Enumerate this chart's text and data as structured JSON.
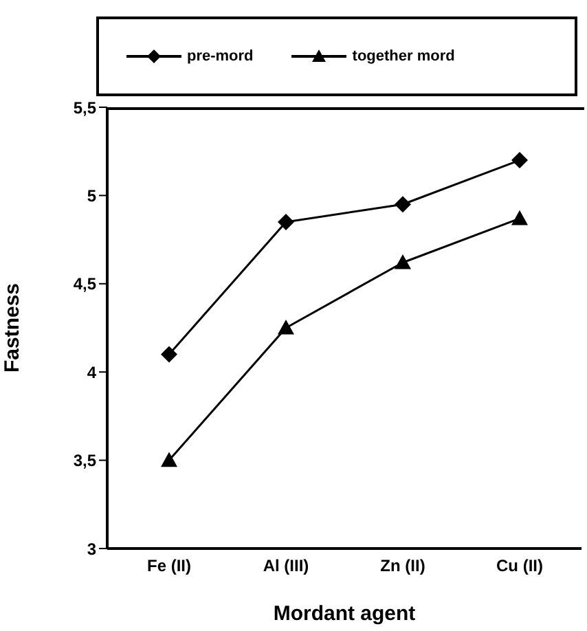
{
  "chart_data": {
    "type": "line",
    "xlabel": "Mordant agent",
    "ylabel": "Fastness",
    "categories": [
      "Fe (II)",
      "Al (III)",
      "Zn (II)",
      "Cu (II)"
    ],
    "series": [
      {
        "name": "pre-mord",
        "color": "#000000",
        "marker": "diamond",
        "values": [
          4.1,
          4.85,
          4.95,
          5.2
        ]
      },
      {
        "name": "together mord",
        "color": "#000000",
        "marker": "triangle",
        "values": [
          3.5,
          4.25,
          4.62,
          4.87
        ]
      }
    ],
    "ylim": [
      3,
      5.5
    ],
    "yticks": [
      3,
      {
        "value": 3.5,
        "label": "3,5"
      },
      4,
      {
        "value": 4.5,
        "label": "4,5"
      },
      5,
      {
        "value": 5.5,
        "label": "5,5"
      }
    ],
    "legend": "top",
    "line_style": "solid"
  }
}
